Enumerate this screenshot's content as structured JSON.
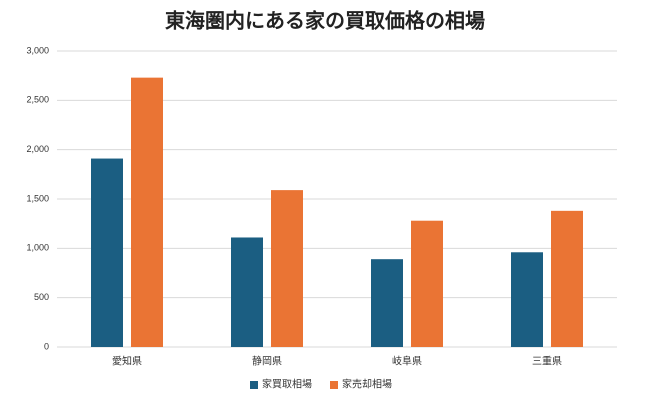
{
  "chart_data": {
    "type": "bar",
    "title": "東海圏内にある家の買取価格の相場",
    "categories": [
      "愛知県",
      "静岡県",
      "岐阜県",
      "三重県"
    ],
    "series": [
      {
        "name": "家買取相場",
        "color": "#1b5e82",
        "values": [
          1910,
          1110,
          890,
          960
        ]
      },
      {
        "name": "家売却相場",
        "color": "#ea7434",
        "values": [
          2730,
          1590,
          1280,
          1380
        ]
      }
    ],
    "ylim": [
      0,
      3000
    ],
    "yticks": [
      0,
      500,
      {
        "value": 1000,
        "label": "1,000"
      },
      {
        "value": 1500,
        "label": "1,500"
      },
      {
        "value": 2000,
        "label": "2,000"
      },
      {
        "value": 2500,
        "label": "2,500"
      },
      {
        "value": 3000,
        "label": "3,000"
      }
    ],
    "grid": true,
    "legend": "bottom"
  }
}
